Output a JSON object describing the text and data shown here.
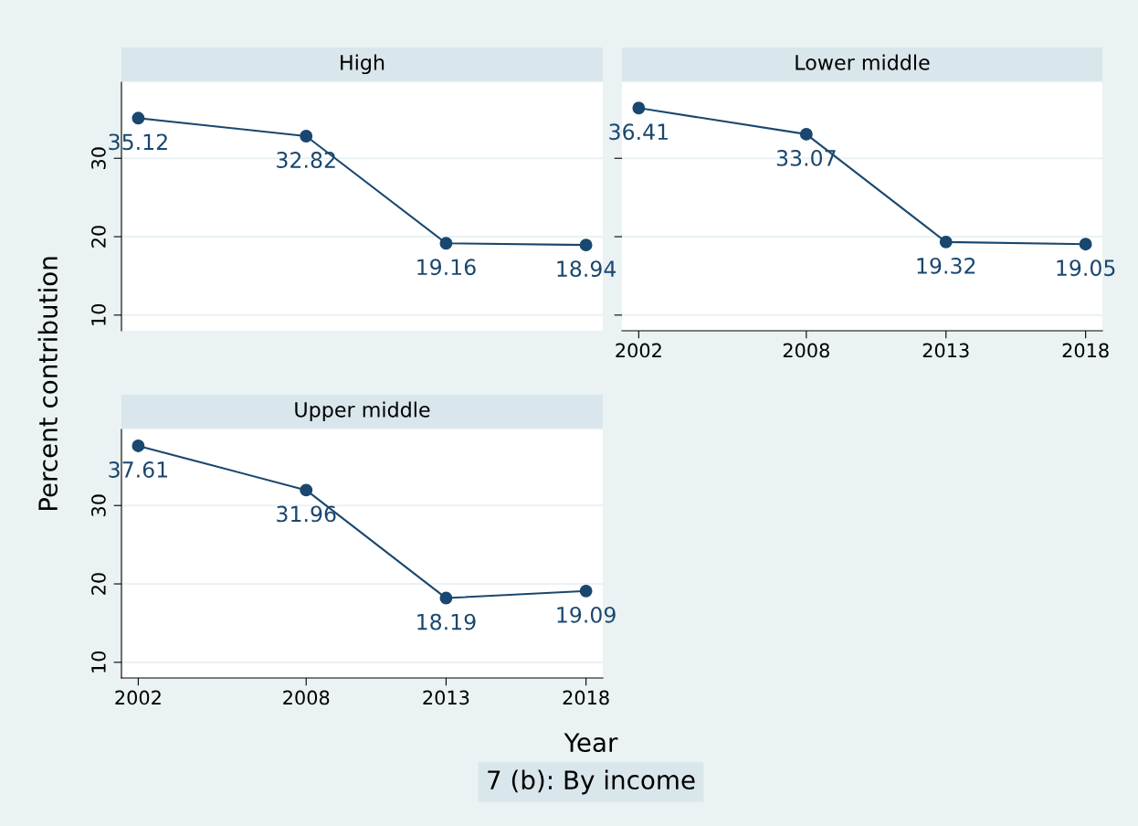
{
  "chart_data": [
    {
      "type": "line",
      "title": "High",
      "ylabel": "Percent contribution",
      "x": [
        2002,
        2008,
        2013,
        2018
      ],
      "series": [
        {
          "color": "#1a476f",
          "values": [
            35.12,
            32.82,
            19.16,
            18.94
          ]
        }
      ],
      "xlim": [
        2001.4,
        2018.6
      ],
      "ylim": [
        8,
        39.7
      ],
      "xticks": [
        2002,
        2008,
        2013,
        2018
      ],
      "yticks": [
        10,
        20,
        30
      ],
      "grid": "y",
      "marker": "circle",
      "data_labels": true,
      "tick_labels": "y"
    },
    {
      "type": "line",
      "title": "Lower middle",
      "x": [
        2002,
        2008,
        2013,
        2018
      ],
      "series": [
        {
          "color": "#1a476f",
          "values": [
            36.41,
            33.07,
            19.32,
            19.05
          ]
        }
      ],
      "xlim": [
        2001.4,
        2018.6
      ],
      "ylim": [
        8,
        39.7
      ],
      "xticks": [
        2002,
        2008,
        2013,
        2018
      ],
      "yticks": [
        10,
        20,
        30
      ],
      "grid": "y",
      "marker": "circle",
      "data_labels": true,
      "tick_labels": "x"
    },
    {
      "type": "line",
      "title": "Upper middle",
      "xlabel": "Year",
      "annotations": [
        "7 (b): By income"
      ],
      "x": [
        2002,
        2008,
        2013,
        2018
      ],
      "series": [
        {
          "color": "#1a476f",
          "values": [
            37.61,
            31.96,
            18.19,
            19.09
          ]
        }
      ],
      "xlim": [
        2001.4,
        2018.6
      ],
      "ylim": [
        8,
        39.7
      ],
      "xticks": [
        2002,
        2008,
        2013,
        2018
      ],
      "yticks": [
        10,
        20,
        30
      ],
      "grid": "y",
      "marker": "circle",
      "data_labels": true
    }
  ]
}
